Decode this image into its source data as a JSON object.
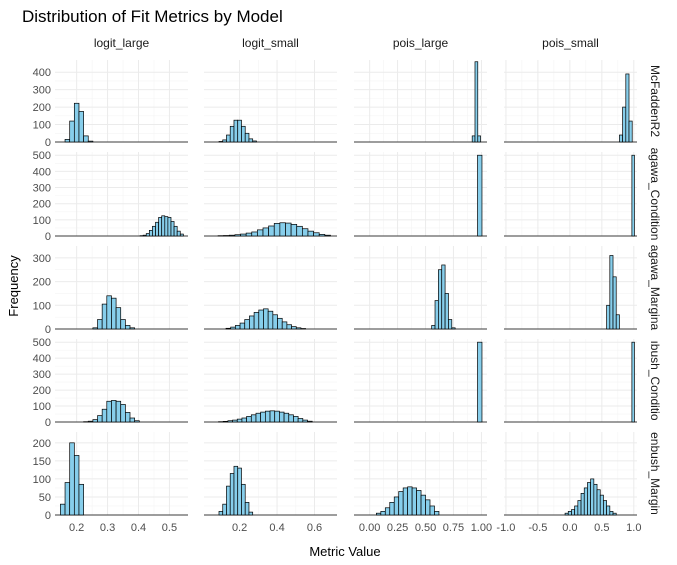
{
  "chart_data": {
    "type": "histogram-facet-grid",
    "title": "Distribution of Fit Metrics by Model",
    "xlabel": "Metric Value",
    "ylabel": "Frequency",
    "bar_fill": "#87ceeb",
    "bar_stroke": "#000000",
    "grid": true,
    "columns": [
      "logit_large",
      "logit_small",
      "pois_large",
      "pois_small"
    ],
    "rows": [
      "McFaddenR2",
      "agawa_Condition",
      "agawa_Margina",
      "ıbush_Conditio",
      "enbush_Margin"
    ],
    "row_yaxes": [
      {
        "ylim": [
          0,
          470
        ],
        "ticks": [
          0,
          100,
          200,
          300,
          400
        ]
      },
      {
        "ylim": [
          0,
          520
        ],
        "ticks": [
          0,
          100,
          200,
          300,
          400,
          500
        ]
      },
      {
        "ylim": [
          0,
          350
        ],
        "ticks": [
          0,
          100,
          200,
          300
        ]
      },
      {
        "ylim": [
          0,
          520
        ],
        "ticks": [
          0,
          100,
          200,
          300,
          400,
          500
        ]
      },
      {
        "ylim": [
          0,
          230
        ],
        "ticks": [
          0,
          50,
          100,
          150,
          200
        ]
      }
    ],
    "col_xaxes": [
      {
        "xlim": [
          0.13,
          0.56
        ],
        "ticks": [
          0.2,
          0.3,
          0.4,
          0.5
        ],
        "tick_labels": [
          "0.2",
          "0.3",
          "0.4",
          "0.5"
        ]
      },
      {
        "xlim": [
          0.01,
          0.72
        ],
        "ticks": [
          0.2,
          0.4,
          0.6
        ],
        "tick_labels": [
          "0.2",
          "0.4",
          "0.6"
        ]
      },
      {
        "xlim": [
          -0.14,
          1.05
        ],
        "ticks": [
          0.0,
          0.25,
          0.5,
          0.75,
          1.0
        ],
        "tick_labels": [
          "0.00",
          "0.25",
          "0.50",
          "0.75",
          "1.00"
        ]
      },
      {
        "xlim": [
          -1.03,
          1.05
        ],
        "ticks": [
          -1.0,
          -0.5,
          0.0,
          0.5,
          1.0
        ],
        "tick_labels": [
          "-1.0",
          "-0.5",
          "0.0",
          "0.5",
          "1.0"
        ]
      }
    ],
    "panels": [
      {
        "row": 0,
        "col": 0,
        "x": [
          0.17,
          0.185,
          0.2,
          0.215,
          0.23,
          0.245
        ],
        "y": [
          15,
          120,
          222,
          175,
          35,
          5
        ]
      },
      {
        "row": 0,
        "col": 1,
        "x": [
          0.1,
          0.12,
          0.14,
          0.16,
          0.18,
          0.2,
          0.22,
          0.24,
          0.26,
          0.28
        ],
        "y": [
          3,
          12,
          40,
          90,
          125,
          125,
          90,
          50,
          18,
          6
        ]
      },
      {
        "row": 0,
        "col": 2,
        "x": [
          0.93,
          0.955,
          0.98
        ],
        "y": [
          35,
          460,
          35
        ]
      },
      {
        "row": 0,
        "col": 3,
        "x": [
          0.8,
          0.85,
          0.9,
          0.95
        ],
        "y": [
          40,
          200,
          390,
          120
        ]
      },
      {
        "row": 1,
        "col": 0,
        "x": [
          0.41,
          0.42,
          0.43,
          0.44,
          0.45,
          0.46,
          0.47,
          0.48,
          0.49,
          0.5,
          0.51,
          0.52,
          0.53,
          0.54
        ],
        "y": [
          2,
          5,
          15,
          35,
          60,
          85,
          115,
          125,
          120,
          115,
          90,
          60,
          30,
          12
        ]
      },
      {
        "row": 1,
        "col": 1,
        "x": [
          0.1,
          0.13,
          0.16,
          0.19,
          0.22,
          0.25,
          0.28,
          0.31,
          0.34,
          0.37,
          0.4,
          0.43,
          0.46,
          0.49,
          0.52,
          0.55,
          0.58,
          0.61,
          0.64,
          0.67
        ],
        "y": [
          2,
          3,
          5,
          8,
          12,
          18,
          25,
          38,
          50,
          62,
          78,
          82,
          80,
          72,
          60,
          45,
          30,
          20,
          10,
          5
        ]
      },
      {
        "row": 1,
        "col": 2,
        "x": [
          0.985
        ],
        "y": [
          500
        ]
      },
      {
        "row": 1,
        "col": 3,
        "x": [
          0.99
        ],
        "y": [
          500
        ]
      },
      {
        "row": 2,
        "col": 0,
        "x": [
          0.26,
          0.275,
          0.29,
          0.305,
          0.32,
          0.335,
          0.35,
          0.365,
          0.38
        ],
        "y": [
          5,
          40,
          105,
          140,
          130,
          90,
          40,
          15,
          5
        ]
      },
      {
        "row": 2,
        "col": 1,
        "x": [
          0.14,
          0.165,
          0.19,
          0.215,
          0.24,
          0.265,
          0.29,
          0.315,
          0.34,
          0.365,
          0.39,
          0.415,
          0.44,
          0.465,
          0.49,
          0.515,
          0.54
        ],
        "y": [
          3,
          8,
          15,
          25,
          40,
          55,
          70,
          80,
          85,
          75,
          60,
          45,
          30,
          18,
          10,
          5,
          2
        ]
      },
      {
        "row": 2,
        "col": 2,
        "x": [
          0.57,
          0.6,
          0.63,
          0.66,
          0.69,
          0.72,
          0.75
        ],
        "y": [
          15,
          120,
          250,
          270,
          150,
          40,
          5
        ]
      },
      {
        "row": 2,
        "col": 3,
        "x": [
          0.6,
          0.65,
          0.7,
          0.75
        ],
        "y": [
          100,
          310,
          220,
          60
        ]
      },
      {
        "row": 3,
        "col": 0,
        "x": [
          0.23,
          0.245,
          0.26,
          0.275,
          0.29,
          0.305,
          0.32,
          0.335,
          0.35,
          0.365,
          0.38,
          0.395
        ],
        "y": [
          2,
          5,
          15,
          40,
          80,
          130,
          135,
          130,
          110,
          60,
          25,
          8
        ]
      },
      {
        "row": 3,
        "col": 1,
        "x": [
          0.1,
          0.125,
          0.15,
          0.175,
          0.2,
          0.225,
          0.25,
          0.275,
          0.3,
          0.325,
          0.35,
          0.375,
          0.4,
          0.425,
          0.45,
          0.475,
          0.5,
          0.525,
          0.55,
          0.575
        ],
        "y": [
          2,
          4,
          8,
          12,
          18,
          25,
          35,
          45,
          55,
          62,
          68,
          70,
          68,
          62,
          55,
          45,
          35,
          22,
          12,
          5
        ]
      },
      {
        "row": 3,
        "col": 2,
        "x": [
          0.985
        ],
        "y": [
          500
        ]
      },
      {
        "row": 3,
        "col": 3,
        "x": [
          0.99
        ],
        "y": [
          500
        ]
      },
      {
        "row": 4,
        "col": 0,
        "x": [
          0.155,
          0.17,
          0.185,
          0.2,
          0.215
        ],
        "y": [
          30,
          90,
          200,
          165,
          85
        ]
      },
      {
        "row": 4,
        "col": 1,
        "x": [
          0.1,
          0.12,
          0.14,
          0.16,
          0.18,
          0.2,
          0.22,
          0.24,
          0.26
        ],
        "y": [
          10,
          30,
          80,
          115,
          135,
          130,
          85,
          35,
          8
        ]
      },
      {
        "row": 4,
        "col": 2,
        "x": [
          0.08,
          0.12,
          0.16,
          0.2,
          0.24,
          0.28,
          0.32,
          0.36,
          0.4,
          0.44,
          0.48,
          0.52,
          0.56,
          0.6
        ],
        "y": [
          5,
          10,
          20,
          35,
          50,
          65,
          75,
          78,
          75,
          68,
          55,
          42,
          25,
          10
        ]
      },
      {
        "row": 4,
        "col": 3,
        "x": [
          -0.05,
          0.0,
          0.05,
          0.1,
          0.15,
          0.2,
          0.25,
          0.3,
          0.35,
          0.4,
          0.45,
          0.5,
          0.55,
          0.6,
          0.65,
          0.7
        ],
        "y": [
          5,
          10,
          15,
          25,
          40,
          60,
          75,
          90,
          100,
          85,
          70,
          55,
          40,
          25,
          10,
          5
        ]
      }
    ]
  }
}
